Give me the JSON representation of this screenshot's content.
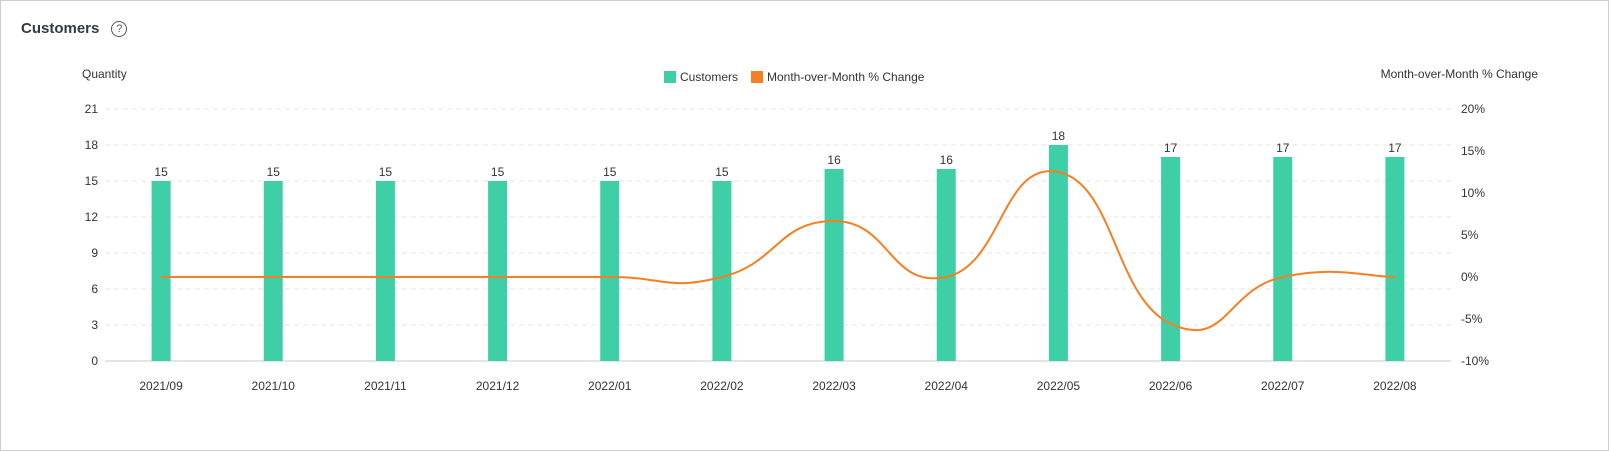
{
  "panel": {
    "title": "Customers",
    "help_symbol": "?",
    "help_icon": "question-circle-icon"
  },
  "colors": {
    "bar": "#3ecfa6",
    "line": "#f57f23",
    "grid": "#e6e6e6",
    "text": "#333333"
  },
  "chart_data": {
    "type": "bar",
    "categories": [
      "2021/09",
      "2021/10",
      "2021/11",
      "2021/12",
      "2022/01",
      "2022/02",
      "2022/03",
      "2022/04",
      "2022/05",
      "2022/06",
      "2022/07",
      "2022/08"
    ],
    "series": [
      {
        "name": "Customers",
        "type": "bar",
        "axis": "left",
        "values": [
          15,
          15,
          15,
          15,
          15,
          15,
          16,
          16,
          18,
          17,
          17,
          17
        ],
        "data_labels": true
      },
      {
        "name": "Month-over-Month % Change",
        "type": "line",
        "axis": "right",
        "smooth": true,
        "values": [
          0,
          0,
          0,
          0,
          0,
          0,
          6.67,
          0,
          12.5,
          -5.56,
          0,
          0
        ]
      }
    ],
    "ylabel": "Quantity",
    "ylabel_right": "Month-over-Month % Change",
    "ylim": [
      0,
      21
    ],
    "yticks": [
      0,
      3,
      6,
      9,
      12,
      15,
      18,
      21
    ],
    "ylim_right": [
      -10,
      20
    ],
    "yticks_right": [
      "-10%",
      "-5%",
      "0%",
      "5%",
      "10%",
      "15%",
      "20%"
    ],
    "grid": true,
    "legend_position": "top-center"
  }
}
